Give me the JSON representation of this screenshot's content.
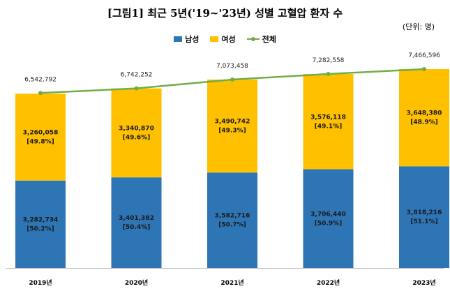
{
  "title": "[그림1] 최근 5년('19~'23년) 성별 고혈압 환자 수",
  "unit": "(단위: 명)",
  "colors": {
    "male": "#2e75b6",
    "female": "#ffc000",
    "total": "#70ad47"
  },
  "legend": {
    "male": "남성",
    "female": "여성",
    "total": "전체"
  },
  "chart_data": {
    "type": "bar",
    "stacked": true,
    "categories": [
      "2019년",
      "2020년",
      "2021년",
      "2022년",
      "2023년"
    ],
    "series": [
      {
        "name": "남성",
        "values": [
          3282734,
          3401382,
          3582716,
          3706440,
          3818216
        ],
        "labels": [
          "3,282,734",
          "3,401,382",
          "3,582,716",
          "3,706,440",
          "3,818,216"
        ],
        "shares": [
          "[50.2%]",
          "[50.4%]",
          "[50.7%]",
          "[50.9%]",
          "[51.1%]"
        ]
      },
      {
        "name": "여성",
        "values": [
          3260058,
          3340870,
          3490742,
          3576118,
          3648380
        ],
        "labels": [
          "3,260,058",
          "3,340,870",
          "3,490,742",
          "3,576,118",
          "3,648,380"
        ],
        "shares": [
          "[49.8%]",
          "[49.6%]",
          "[49.3%]",
          "[49.1%]",
          "[48.9%]"
        ]
      },
      {
        "name": "전체",
        "type": "line",
        "values": [
          6542792,
          6742252,
          7073458,
          7282558,
          7466596
        ],
        "labels": [
          "6,542,792",
          "6,742,252",
          "7,073,458",
          "7,282,558",
          "7,466,596"
        ]
      }
    ],
    "ylim": [
      0,
      8000000
    ],
    "grid": false,
    "legend_position": "top-center"
  }
}
